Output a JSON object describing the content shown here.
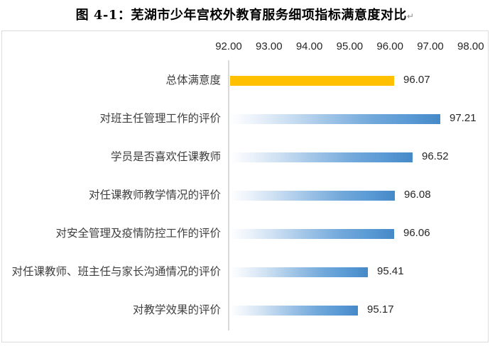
{
  "page": {
    "title": "图 4-1：芜湖市少年宫校外教育服务细项指标满意度对比",
    "paragraph_mark": "↵"
  },
  "chart_data": {
    "type": "bar",
    "orientation": "horizontal",
    "title": "图 4-1：芜湖市少年宫校外教育服务细项指标满意度对比",
    "xlabel": "",
    "ylabel": "",
    "xlim": [
      92.0,
      98.0
    ],
    "x_tick_labels": [
      "92.00",
      "93.00",
      "94.00",
      "95.00",
      "96.00",
      "97.00",
      "98.00"
    ],
    "grid": false,
    "legend": false,
    "axis_position": "top",
    "categories": [
      "总体满意度",
      "对班主任管理工作的评价",
      "学员是否喜欢任课教师",
      "对任课教师教学情况的评价",
      "对安全管理及疫情防控工作的评价",
      "对任课教师、班主任与家长沟通情况的评价",
      "对教学效果的评价"
    ],
    "values": [
      96.07,
      97.21,
      96.52,
      96.08,
      96.06,
      95.41,
      95.17
    ],
    "value_labels": [
      "96.07",
      "97.21",
      "96.52",
      "96.08",
      "96.06",
      "95.41",
      "95.17"
    ],
    "bar_styles": [
      "gold",
      "blue-gradient",
      "blue-gradient",
      "blue-gradient",
      "blue-gradient",
      "blue-gradient",
      "blue-gradient"
    ],
    "colors": {
      "highlight_bar": "#FFC000",
      "bar_blue": "#5B9BD5",
      "axis_line": "#D9D9D9",
      "box_border": "#DCDCDC",
      "tick_text": "#262626",
      "category_text": "#3F3F3F",
      "value_text": "#262626"
    }
  }
}
